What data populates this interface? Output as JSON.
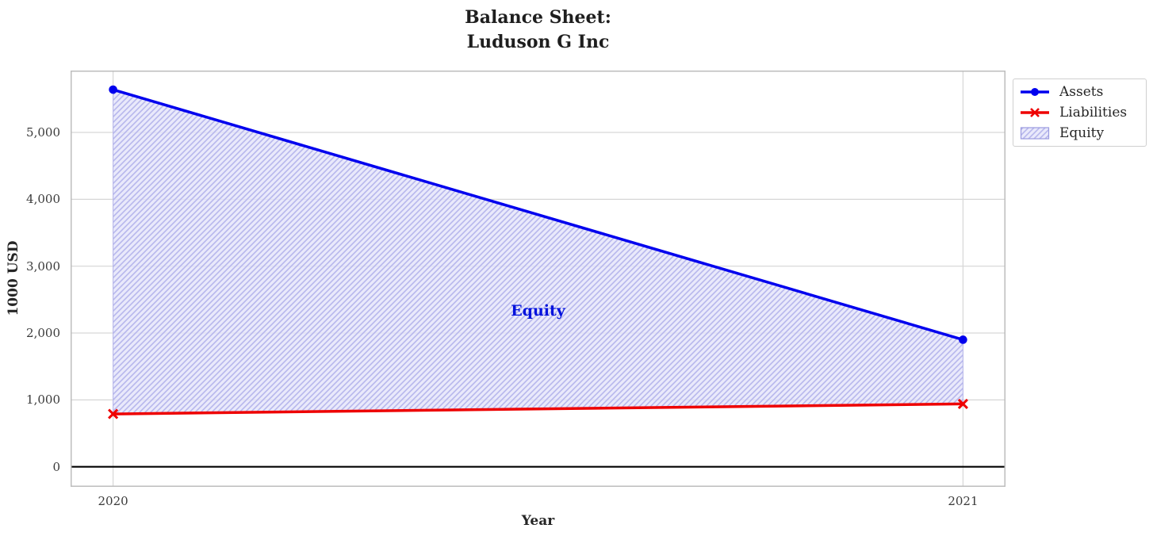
{
  "chart_data": {
    "type": "line",
    "title": "Balance Sheet:\nLuduson G Inc",
    "title_lines": [
      "Balance Sheet:",
      "Luduson G Inc"
    ],
    "xlabel": "Year",
    "ylabel": "1000 USD",
    "x": [
      2020,
      2021
    ],
    "x_tick_labels": [
      "2020",
      "2021"
    ],
    "series": [
      {
        "name": "Assets",
        "values": [
          5640,
          1900
        ],
        "color": "#0000ee",
        "marker": "circle"
      },
      {
        "name": "Liabilities",
        "values": [
          790,
          940
        ],
        "color": "#ee0000",
        "marker": "x"
      }
    ],
    "area": {
      "name": "Equity",
      "between": [
        "Assets",
        "Liabilities"
      ],
      "hatch": "//",
      "fill_color": "#e4e4fa",
      "fill_opacity": 0.8,
      "hatch_color": "#b7b7ec",
      "edge_color": "#9a9ae0"
    },
    "annotation": {
      "text": "Equity",
      "color": "#0011dd",
      "x": 2020.5,
      "y": 2320
    },
    "yticks": {
      "values": [
        0,
        1000,
        2000,
        3000,
        4000,
        5000
      ],
      "labels": [
        "0",
        "1,000",
        "2,000",
        "3,000",
        "4,000",
        "5,000"
      ]
    },
    "xlim": [
      2019.95,
      2021.05
    ],
    "ylim": [
      -300,
      5925
    ],
    "grid": true,
    "zero_line": {
      "y": 0,
      "color": "#000000"
    },
    "legend": {
      "position": "upper right outside plot",
      "entries": [
        "Assets",
        "Liabilities",
        "Equity"
      ]
    },
    "colors": {
      "grid": "#d6d6d6",
      "spine": "#bdbdbd",
      "title_text": "#1e1e1e",
      "tick_text": "#3a3a3a"
    }
  }
}
